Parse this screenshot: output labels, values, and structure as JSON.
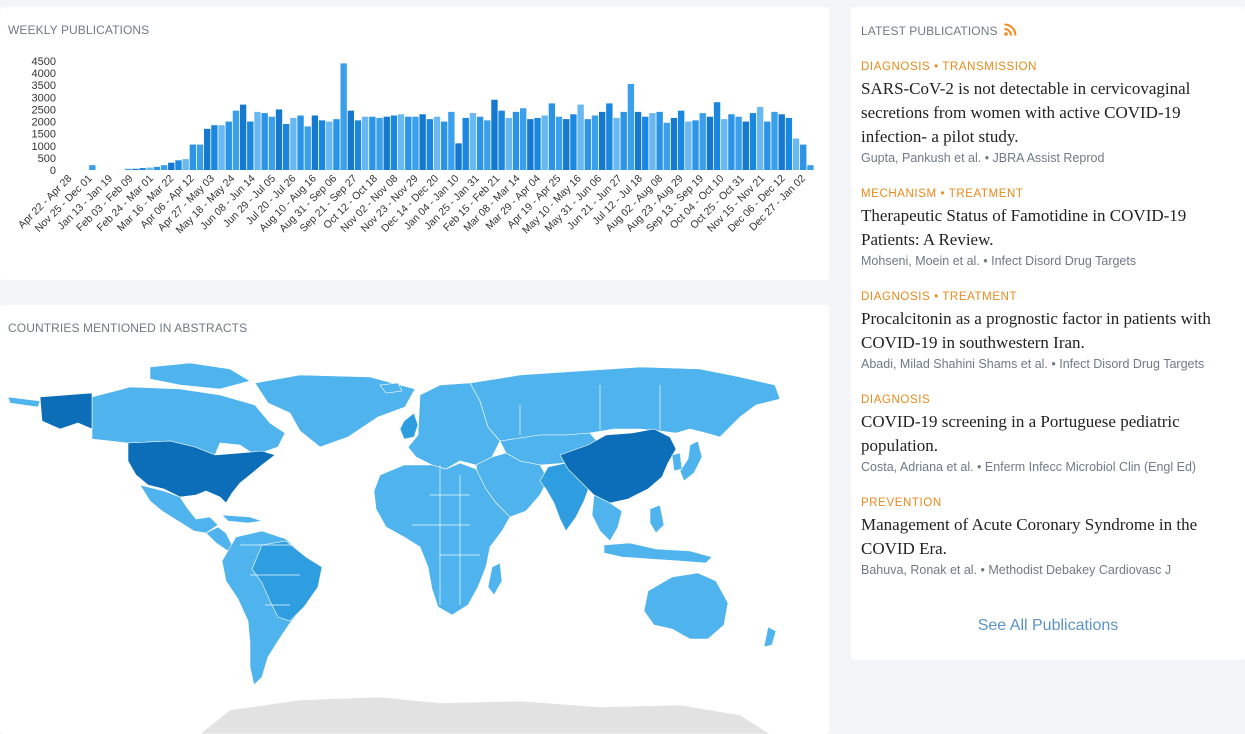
{
  "weekly": {
    "title": "WEEKLY PUBLICATIONS",
    "chart_data": {
      "type": "bar",
      "ylim": [
        0,
        4500
      ],
      "yticks": [
        0,
        500,
        1000,
        1500,
        2000,
        2500,
        3000,
        3500,
        4000,
        4500
      ],
      "tick_labels": [
        "Apr 22 - Apr 28",
        "Nov 25 - Dec 01",
        "Jan 13 - Jan 19",
        "Feb 03 - Feb 09",
        "Feb 24 - Mar 01",
        "Mar 16 - Mar 22",
        "Apr 06 - Apr 12",
        "Apr 27 - May 03",
        "May 18 - May 24",
        "Jun 08 - Jun 14",
        "Jun 29 - Jul 05",
        "Jul 20 - Jul 26",
        "Aug 10 - Aug 16",
        "Aug 31 - Sep 06",
        "Sep 21 - Sep 27",
        "Oct 12 - Oct 18",
        "Nov 02 - Nov 08",
        "Nov 23 - Nov 29",
        "Dec 14 - Dec 20",
        "Jan 04 - Jan 10",
        "Jan 25 - Jan 31",
        "Feb 15 - Feb 21",
        "Mar 08 - Mar 14",
        "Mar 29 - Apr 04",
        "Apr 19 - Apr 25",
        "May 10 - May 16",
        "May 31 - Jun 06",
        "Jun 21 - Jun 27",
        "Jul 12 - Jul 18",
        "Aug 02 - Aug 08",
        "Aug 23 - Aug 29",
        "Sep 13 - Sep 19",
        "Oct 04 - Oct 10",
        "Oct 25 - Oct 31",
        "Nov 15 - Nov 21",
        "Dec 06 - Dec 12",
        "Dec 27 - Jan 02"
      ],
      "values": [
        0,
        0,
        0,
        0,
        200,
        0,
        0,
        0,
        0,
        50,
        50,
        80,
        100,
        130,
        200,
        300,
        400,
        450,
        1050,
        1050,
        1700,
        1850,
        1850,
        2000,
        2450,
        2700,
        2000,
        2400,
        2350,
        2200,
        2500,
        1900,
        2150,
        2250,
        1800,
        2250,
        2050,
        2000,
        2100,
        4400,
        2450,
        2050,
        2200,
        2200,
        2150,
        2200,
        2250,
        2300,
        2200,
        2200,
        2300,
        2100,
        2200,
        2000,
        2400,
        1100,
        2150,
        2350,
        2200,
        2050,
        2900,
        2450,
        2150,
        2400,
        2550,
        2100,
        2150,
        2250,
        2750,
        2200,
        2100,
        2300,
        2700,
        2100,
        2250,
        2400,
        2750,
        2150,
        2400,
        3550,
        2400,
        2200,
        2350,
        2400,
        1950,
        2150,
        2450,
        2000,
        2050,
        2350,
        2200,
        2800,
        2100,
        2300,
        2200,
        2000,
        2350,
        2600,
        2000,
        2400,
        2300,
        2150,
        1300,
        1050,
        200
      ]
    }
  },
  "countries": {
    "title": "COUNTRIES MENTIONED IN ABSTRACTS",
    "colors": {
      "light": "#4fb4ee",
      "medium": "#2f9ee0",
      "dark": "#0c6eb8",
      "ocean": "#ffffff",
      "antarctica": "#e2e2e2"
    }
  },
  "latest": {
    "title": "LATEST PUBLICATIONS",
    "rss_icon": "rss-icon",
    "items": [
      {
        "tags": "DIAGNOSIS • TRANSMISSION",
        "title": "SARS-CoV-2 is not detectable in cervicovaginal secretions from women with active COVID-19 infection- a pilot study.",
        "meta": "Gupta, Pankush et al. • JBRA Assist Reprod"
      },
      {
        "tags": "MECHANISM • TREATMENT",
        "title": "Therapeutic Status of Famotidine in COVID-19 Patients: A Review.",
        "meta": "Mohseni, Moein et al. • Infect Disord Drug Targets"
      },
      {
        "tags": "DIAGNOSIS • TREATMENT",
        "title": "Procalcitonin as a prognostic factor in patients with COVID-19 in southwestern Iran.",
        "meta": "Abadi, Milad Shahini Shams et al. • Infect Disord Drug Targets"
      },
      {
        "tags": "DIAGNOSIS",
        "title": "COVID-19 screening in a Portuguese pediatric population.",
        "meta": "Costa, Adriana et al. • Enferm Infecc Microbiol Clin (Engl Ed)"
      },
      {
        "tags": "PREVENTION",
        "title": "Management of Acute Coronary Syndrome in the COVID Era.",
        "meta": "Bahuva, Ronak et al. • Methodist Debakey Cardiovasc J"
      }
    ],
    "see_all": "See All Publications"
  }
}
